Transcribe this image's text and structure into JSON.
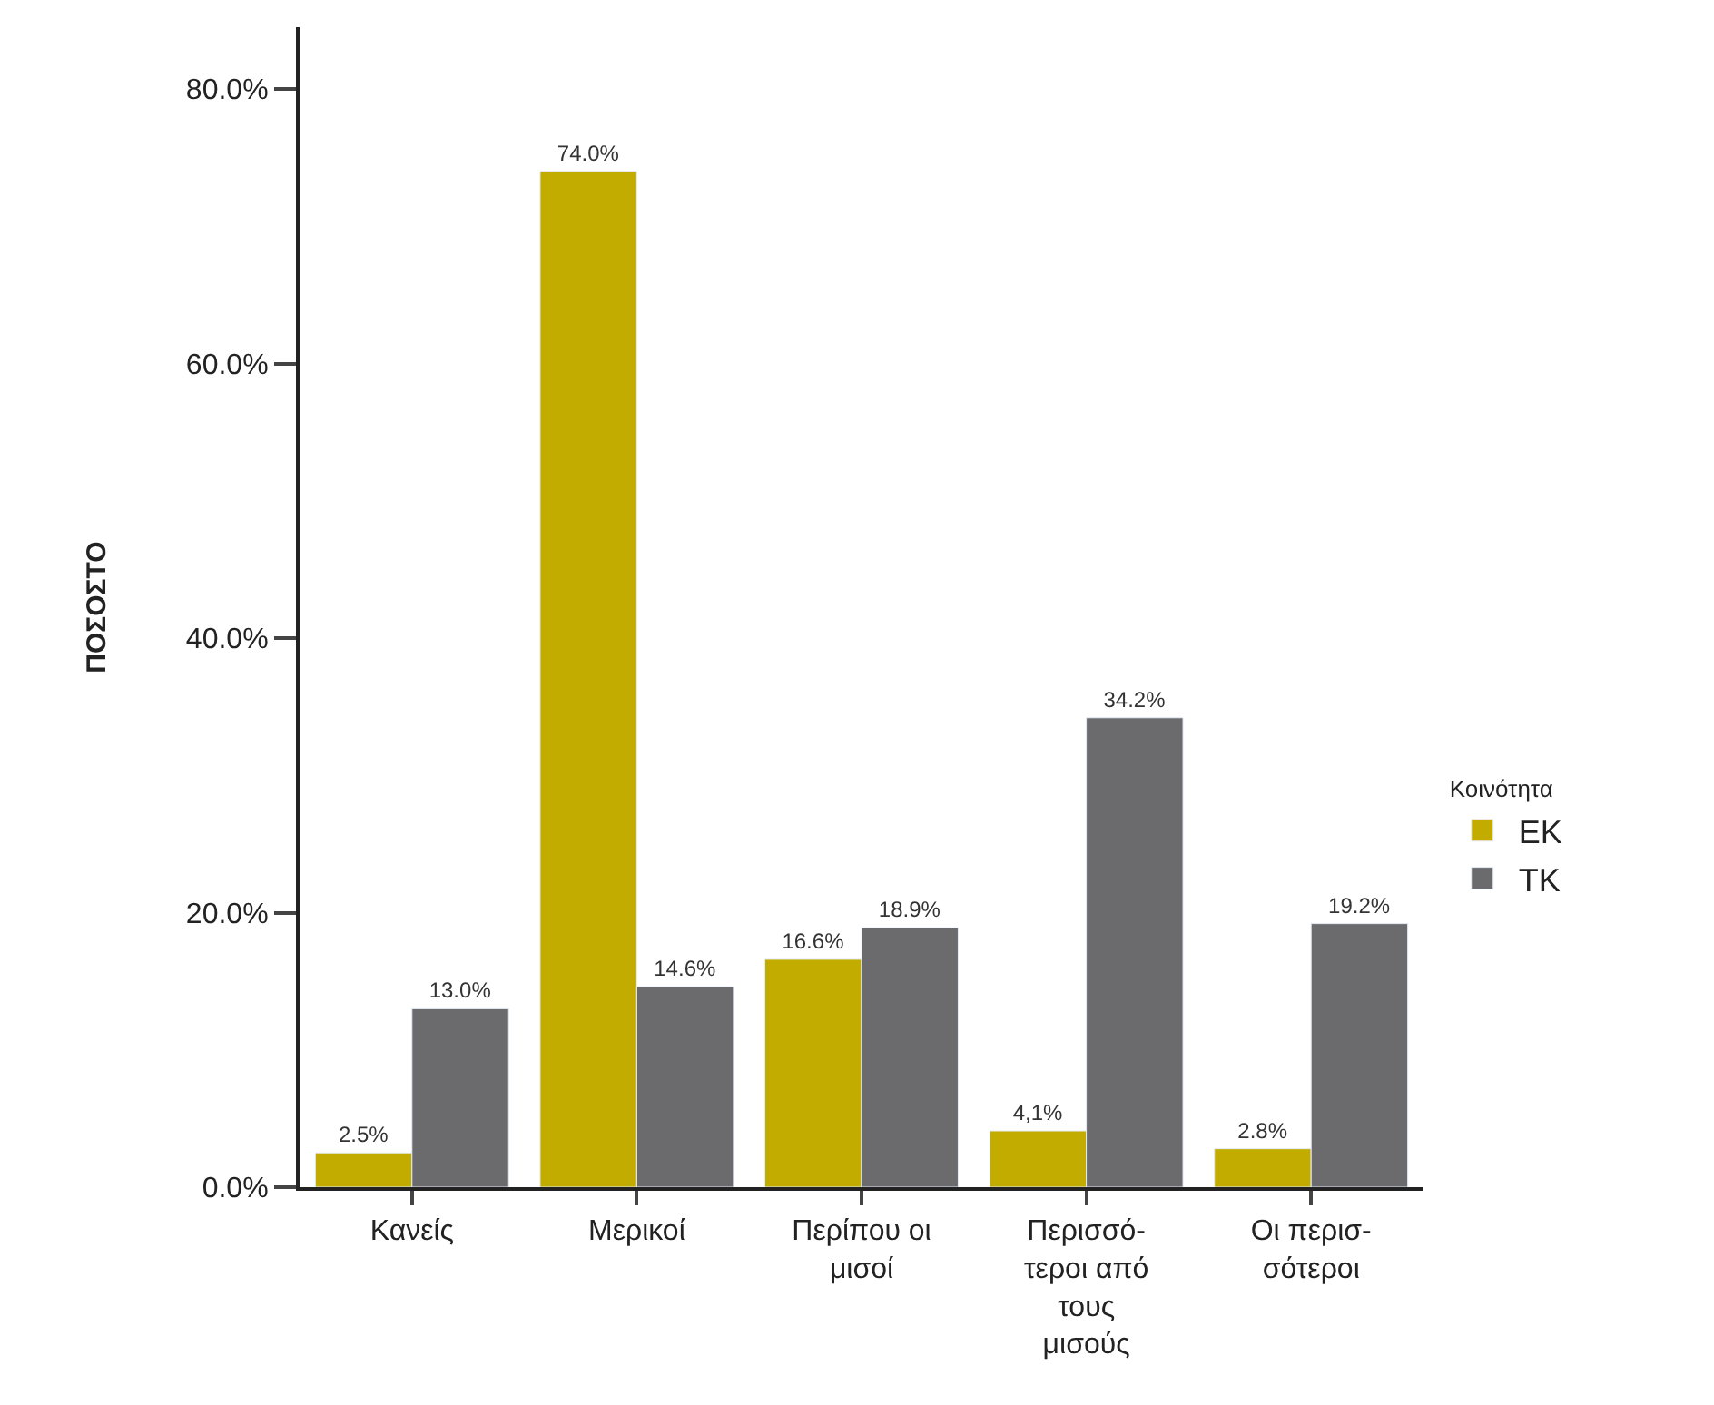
{
  "chart_data": {
    "type": "bar",
    "ylabel": "ΠΟΣΟΣΤΟ",
    "legend_title": "Κοινότητα",
    "categories": [
      "Κανείς",
      "Μερικοί",
      "Περίπου οι\nμισοί",
      "Περισσό-\nτεροι από\nτους\nμισούς",
      "Οι περισ-\nσότεροι"
    ],
    "series": [
      {
        "name": "ΕΚ",
        "color": "#c2ac00",
        "values": [
          2.5,
          74.0,
          16.6,
          4.1,
          2.8
        ],
        "value_labels": [
          "2.5%",
          "74.0%",
          "16.6%",
          "4,1%",
          "2.8%"
        ]
      },
      {
        "name": "ΤΚ",
        "color": "#6b6b6d",
        "values": [
          13.0,
          14.6,
          18.9,
          34.2,
          19.2
        ],
        "value_labels": [
          "13.0%",
          "14.6%",
          "18.9%",
          "34.2%",
          "19.2%"
        ]
      }
    ],
    "ylim": [
      0,
      84.5
    ],
    "yticks": [
      {
        "value": 0,
        "label": "0.0%"
      },
      {
        "value": 20,
        "label": "20.0%"
      },
      {
        "value": 40,
        "label": "40.0%"
      },
      {
        "value": 60,
        "label": "60.0%"
      },
      {
        "value": 80,
        "label": "80.0%"
      }
    ],
    "legend": "right"
  }
}
